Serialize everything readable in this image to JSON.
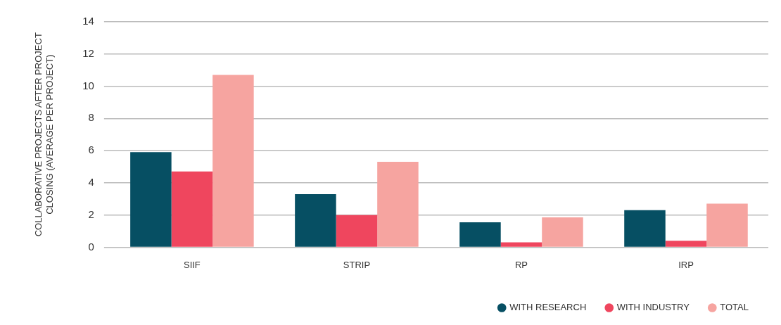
{
  "chart_data": {
    "type": "bar",
    "ylabel": "COLLABORATIVE PROJECTS AFTER PROJECT\nCLOSING (AVERAGE PER PROJECT)",
    "categories": [
      "SIIF",
      "STRIP",
      "RP",
      "IRP"
    ],
    "series": [
      {
        "name": "WITH RESEARCH",
        "color": "#064f63",
        "values": [
          5.9,
          3.3,
          1.55,
          2.3
        ]
      },
      {
        "name": "WITH INDUSTRY",
        "color": "#ef465e",
        "values": [
          4.7,
          2.0,
          0.3,
          0.4
        ]
      },
      {
        "name": "TOTAL",
        "color": "#f6a4a0",
        "values": [
          10.7,
          5.3,
          1.85,
          2.7
        ]
      }
    ],
    "ylim": [
      0,
      14
    ],
    "yticks": [
      0,
      2,
      4,
      6,
      8,
      10,
      12,
      14
    ],
    "grid": "y",
    "legend": "bottom right"
  }
}
